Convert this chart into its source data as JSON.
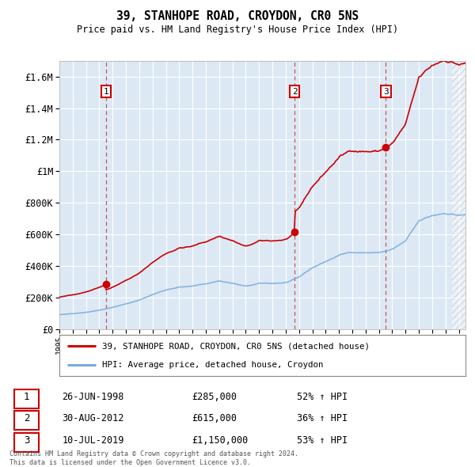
{
  "title": "39, STANHOPE ROAD, CROYDON, CR0 5NS",
  "subtitle": "Price paid vs. HM Land Registry's House Price Index (HPI)",
  "background_color": "#ffffff",
  "plot_bg_color": "#dce9f5",
  "grid_color": "#ffffff",
  "ylim": [
    0,
    1700000
  ],
  "yticks": [
    0,
    200000,
    400000,
    600000,
    800000,
    1000000,
    1200000,
    1400000,
    1600000
  ],
  "ytick_labels": [
    "£0",
    "£200K",
    "£400K",
    "£600K",
    "£800K",
    "£1M",
    "£1.2M",
    "£1.4M",
    "£1.6M"
  ],
  "xlim_start": 1995.0,
  "xlim_end": 2025.5,
  "sales": [
    {
      "num": 1,
      "year": 1998.49,
      "price": 285000,
      "date": "26-JUN-1998",
      "pct": "52%",
      "dir": "↑"
    },
    {
      "num": 2,
      "year": 2012.66,
      "price": 615000,
      "date": "30-AUG-2012",
      "pct": "36%",
      "dir": "↑"
    },
    {
      "num": 3,
      "year": 2019.52,
      "price": 1150000,
      "date": "10-JUL-2019",
      "pct": "53%",
      "dir": "↑"
    }
  ],
  "red_line_color": "#cc0000",
  "blue_line_color": "#7aaadd",
  "footnote": "Contains HM Land Registry data © Crown copyright and database right 2024.\nThis data is licensed under the Open Government Licence v3.0.",
  "legend_red": "39, STANHOPE ROAD, CROYDON, CR0 5NS (detached house)",
  "legend_blue": "HPI: Average price, detached house, Croydon"
}
